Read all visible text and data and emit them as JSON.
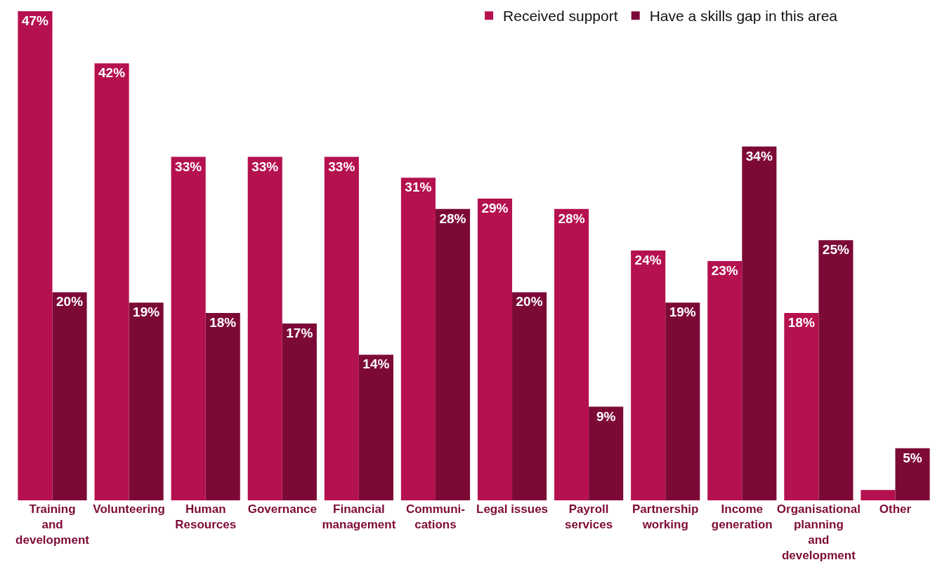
{
  "chart_data": {
    "type": "bar",
    "categories": [
      "Training\nand\ndevelopment",
      "Volunteering",
      "Human\nResources",
      "Governance",
      "Financial\nmanagement",
      "Communi-\ncations",
      "Legal issues",
      "Payroll\nservices",
      "Partnership\nworking",
      "Income\ngeneration",
      "Organisational\nplanning\nand\ndevelopment",
      "Other"
    ],
    "series": [
      {
        "name": "Received support",
        "color": "#b5104f",
        "values": [
          47,
          42,
          33,
          33,
          33,
          31,
          29,
          28,
          24,
          23,
          18,
          1
        ],
        "value_labels": [
          "47%",
          "42%",
          "33%",
          "33%",
          "33%",
          "31%",
          "29%",
          "28%",
          "24%",
          "23%",
          "18%",
          null
        ]
      },
      {
        "name": "Have a skills gap in this area",
        "color": "#7d0a36",
        "values": [
          20,
          19,
          18,
          17,
          14,
          28,
          20,
          9,
          19,
          34,
          25,
          5
        ],
        "value_labels": [
          "20%",
          "19%",
          "18%",
          "17%",
          "14%",
          "28%",
          "20%",
          "9%",
          "19%",
          "34%",
          "25%",
          "5%"
        ]
      }
    ],
    "legend": "top right"
  }
}
